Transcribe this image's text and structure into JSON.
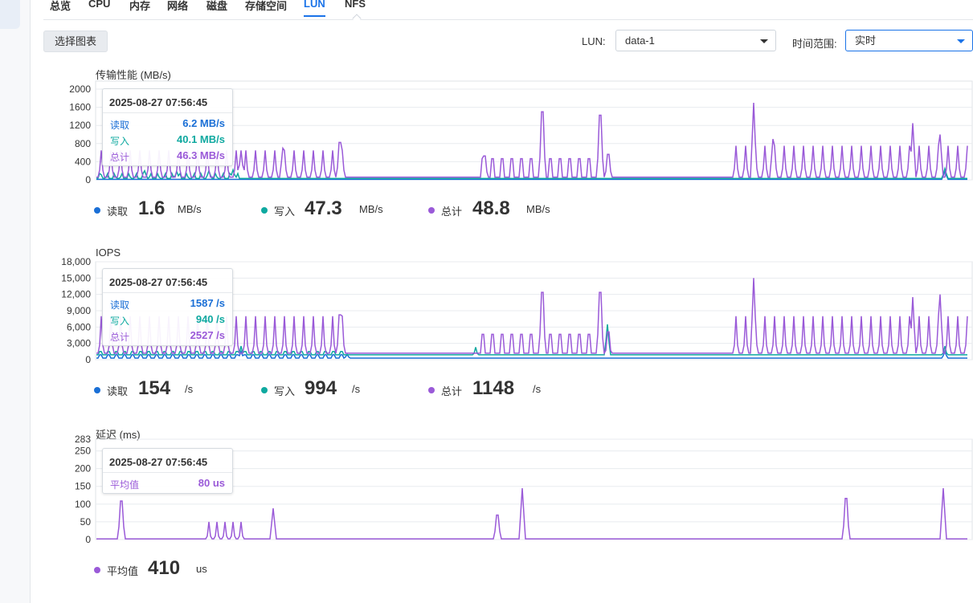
{
  "tabs": [
    "总览",
    "CPU",
    "内存",
    "网络",
    "磁盘",
    "存储空间",
    "LUN",
    "NFS"
  ],
  "active_tab": "LUN",
  "toolbar": {
    "select_chart_label": "选择图表",
    "lun_label": "LUN:",
    "lun_value": "data-1",
    "time_range_label": "时间范围:",
    "time_range_value": "实时"
  },
  "colors": {
    "read": "#1a6fd6",
    "write": "#0fa9a0",
    "total": "#9a5ad8",
    "latency": "#9a5ad8",
    "grid": "#e8ebef"
  },
  "throughput": {
    "title": "传输性能 (MB/s)",
    "y_ticks": [
      "2000",
      "1600",
      "1200",
      "800",
      "400",
      "0"
    ],
    "tooltip": {
      "time": "2025-08-27 07:56:45",
      "rows": [
        {
          "name": "读取",
          "value": "6.2 MB/s"
        },
        {
          "name": "写入",
          "value": "40.1 MB/s"
        },
        {
          "name": "总计",
          "value": "46.3 MB/s"
        }
      ]
    },
    "legend": [
      {
        "name": "读取",
        "value": "1.6",
        "unit": "MB/s"
      },
      {
        "name": "写入",
        "value": "47.3",
        "unit": "MB/s"
      },
      {
        "name": "总计",
        "value": "48.8",
        "unit": "MB/s"
      }
    ]
  },
  "iops": {
    "title": "IOPS",
    "y_ticks": [
      "18,000",
      "15,000",
      "12,000",
      "9,000",
      "6,000",
      "3,000",
      "0"
    ],
    "tooltip": {
      "time": "2025-08-27 07:56:45",
      "rows": [
        {
          "name": "读取",
          "value": "1587 /s"
        },
        {
          "name": "写入",
          "value": "940 /s"
        },
        {
          "name": "总计",
          "value": "2527 /s"
        }
      ]
    },
    "legend": [
      {
        "name": "读取",
        "value": "154",
        "unit": "/s"
      },
      {
        "name": "写入",
        "value": "994",
        "unit": "/s"
      },
      {
        "name": "总计",
        "value": "1148",
        "unit": "/s"
      }
    ]
  },
  "latency": {
    "title": "延迟 (ms)",
    "y_ticks": [
      "283",
      "250",
      "200",
      "150",
      "100",
      "50",
      "0"
    ],
    "tooltip": {
      "time": "2025-08-27 07:56:45",
      "rows": [
        {
          "name": "平均值",
          "value": "80 us"
        }
      ]
    },
    "legend": [
      {
        "name": "平均值",
        "value": "410",
        "unit": "us"
      }
    ]
  },
  "chart_data": [
    {
      "type": "line",
      "title": "传输性能 (MB/s)",
      "ylabel": "MB/s",
      "ylim": [
        0,
        2000
      ],
      "series": [
        {
          "name": "读取",
          "peaks": [
            [
              432,
              0
            ],
            [
              590,
              0
            ],
            [
              595,
              0
            ],
            [
              756,
              0
            ],
            [
              1176,
              180
            ]
          ]
        },
        {
          "name": "写入",
          "peaks": [
            [
              125,
              150
            ],
            [
              180,
              200
            ],
            [
              220,
              180
            ],
            [
              260,
              200
            ],
            [
              290,
              220
            ],
            [
              1176,
              250
            ]
          ]
        },
        {
          "name": "总计",
          "peaks": [
            [
              300,
              650
            ],
            [
              352,
              700
            ],
            [
              423,
              1100
            ],
            [
              603,
              700
            ],
            [
              675,
              2000
            ],
            [
              747,
              1900
            ],
            [
              757,
              750
            ],
            [
              938,
              1700
            ],
            [
              962,
              900
            ],
            [
              1136,
              1250
            ],
            [
              1170,
              1000
            ]
          ]
        }
      ]
    },
    {
      "type": "line",
      "title": "IOPS",
      "ylabel": "/s",
      "ylim": [
        0,
        18000
      ],
      "series": [
        {
          "name": "读取",
          "peaks": [
            [
              300,
              1500
            ],
            [
              432,
              1000
            ],
            [
              1176,
              1500
            ]
          ]
        },
        {
          "name": "写入",
          "peaks": [
            [
              300,
              2500
            ],
            [
              592,
              2300
            ],
            [
              756,
              6500
            ],
            [
              1176,
              2500
            ]
          ]
        },
        {
          "name": "总计",
          "peaks": [
            [
              423,
              11000
            ],
            [
              675,
              16500
            ],
            [
              747,
              16500
            ],
            [
              757,
              6800
            ],
            [
              938,
              15000
            ],
            [
              1136,
              11500
            ],
            [
              1170,
              12000
            ]
          ]
        }
      ]
    },
    {
      "type": "line",
      "title": "延迟 (ms)",
      "ylabel": "ms",
      "ylim": [
        0,
        283
      ],
      "series": [
        {
          "name": "平均值",
          "peaks": [
            [
              151,
              145
            ],
            [
              340,
              88
            ],
            [
              619,
              92
            ],
            [
              650,
              145
            ],
            [
              1053,
              155
            ],
            [
              1174,
              145
            ]
          ]
        }
      ]
    }
  ]
}
